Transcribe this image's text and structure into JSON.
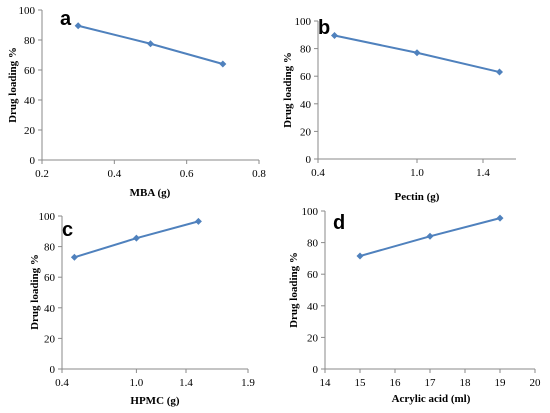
{
  "chart_data": [
    {
      "type": "line",
      "panel_label": "a",
      "xlabel": "MBA (g)",
      "ylabel": "Drug loading %",
      "xlim": [
        0.2,
        0.8
      ],
      "ylim": [
        0,
        100
      ],
      "xticks": [
        "0.2",
        "0.4",
        "0.6",
        "0.8"
      ],
      "yticks": [
        "0",
        "20",
        "40",
        "60",
        "80",
        "100"
      ],
      "x": [
        0.3,
        0.5,
        0.7
      ],
      "values": [
        89.5,
        77.5,
        64
      ],
      "color": "#4f81bd",
      "grid": false
    },
    {
      "type": "line",
      "panel_label": "b",
      "xlabel": "Pectin (g)",
      "ylabel": "Drug loading %",
      "xlim": [
        0.4,
        1.6
      ],
      "ylim": [
        0,
        100
      ],
      "xticks": [
        "0.4",
        "1.0",
        "1.4"
      ],
      "yticks": [
        "0",
        "20",
        "40",
        "60",
        "80",
        "100"
      ],
      "x": [
        0.5,
        1.0,
        1.5
      ],
      "values": [
        89.5,
        77,
        63
      ],
      "color": "#4f81bd",
      "grid": false
    },
    {
      "type": "line",
      "panel_label": "c",
      "xlabel": "HPMC (g)",
      "ylabel": "Drug loading %",
      "xlim": [
        0.4,
        1.9
      ],
      "ylim": [
        0,
        100
      ],
      "xticks": [
        "0.4",
        "1.0",
        "1.4",
        "1.9"
      ],
      "yticks": [
        "0",
        "20",
        "40",
        "60",
        "80",
        "100"
      ],
      "x": [
        0.5,
        1.0,
        1.5
      ],
      "values": [
        73,
        85.5,
        96.5
      ],
      "color": "#4f81bd",
      "grid": false
    },
    {
      "type": "line",
      "panel_label": "d",
      "xlabel": "Acrylic acid (ml)",
      "ylabel": "Drug loading %",
      "xlim": [
        14,
        20
      ],
      "ylim": [
        0,
        100
      ],
      "xticks": [
        "14",
        "15",
        "16",
        "17",
        "18",
        "19",
        "20"
      ],
      "yticks": [
        "0",
        "20",
        "40",
        "60",
        "80",
        "100"
      ],
      "x": [
        15,
        17,
        19
      ],
      "values": [
        71.5,
        84,
        95.5
      ],
      "color": "#4f81bd",
      "grid": false
    }
  ]
}
